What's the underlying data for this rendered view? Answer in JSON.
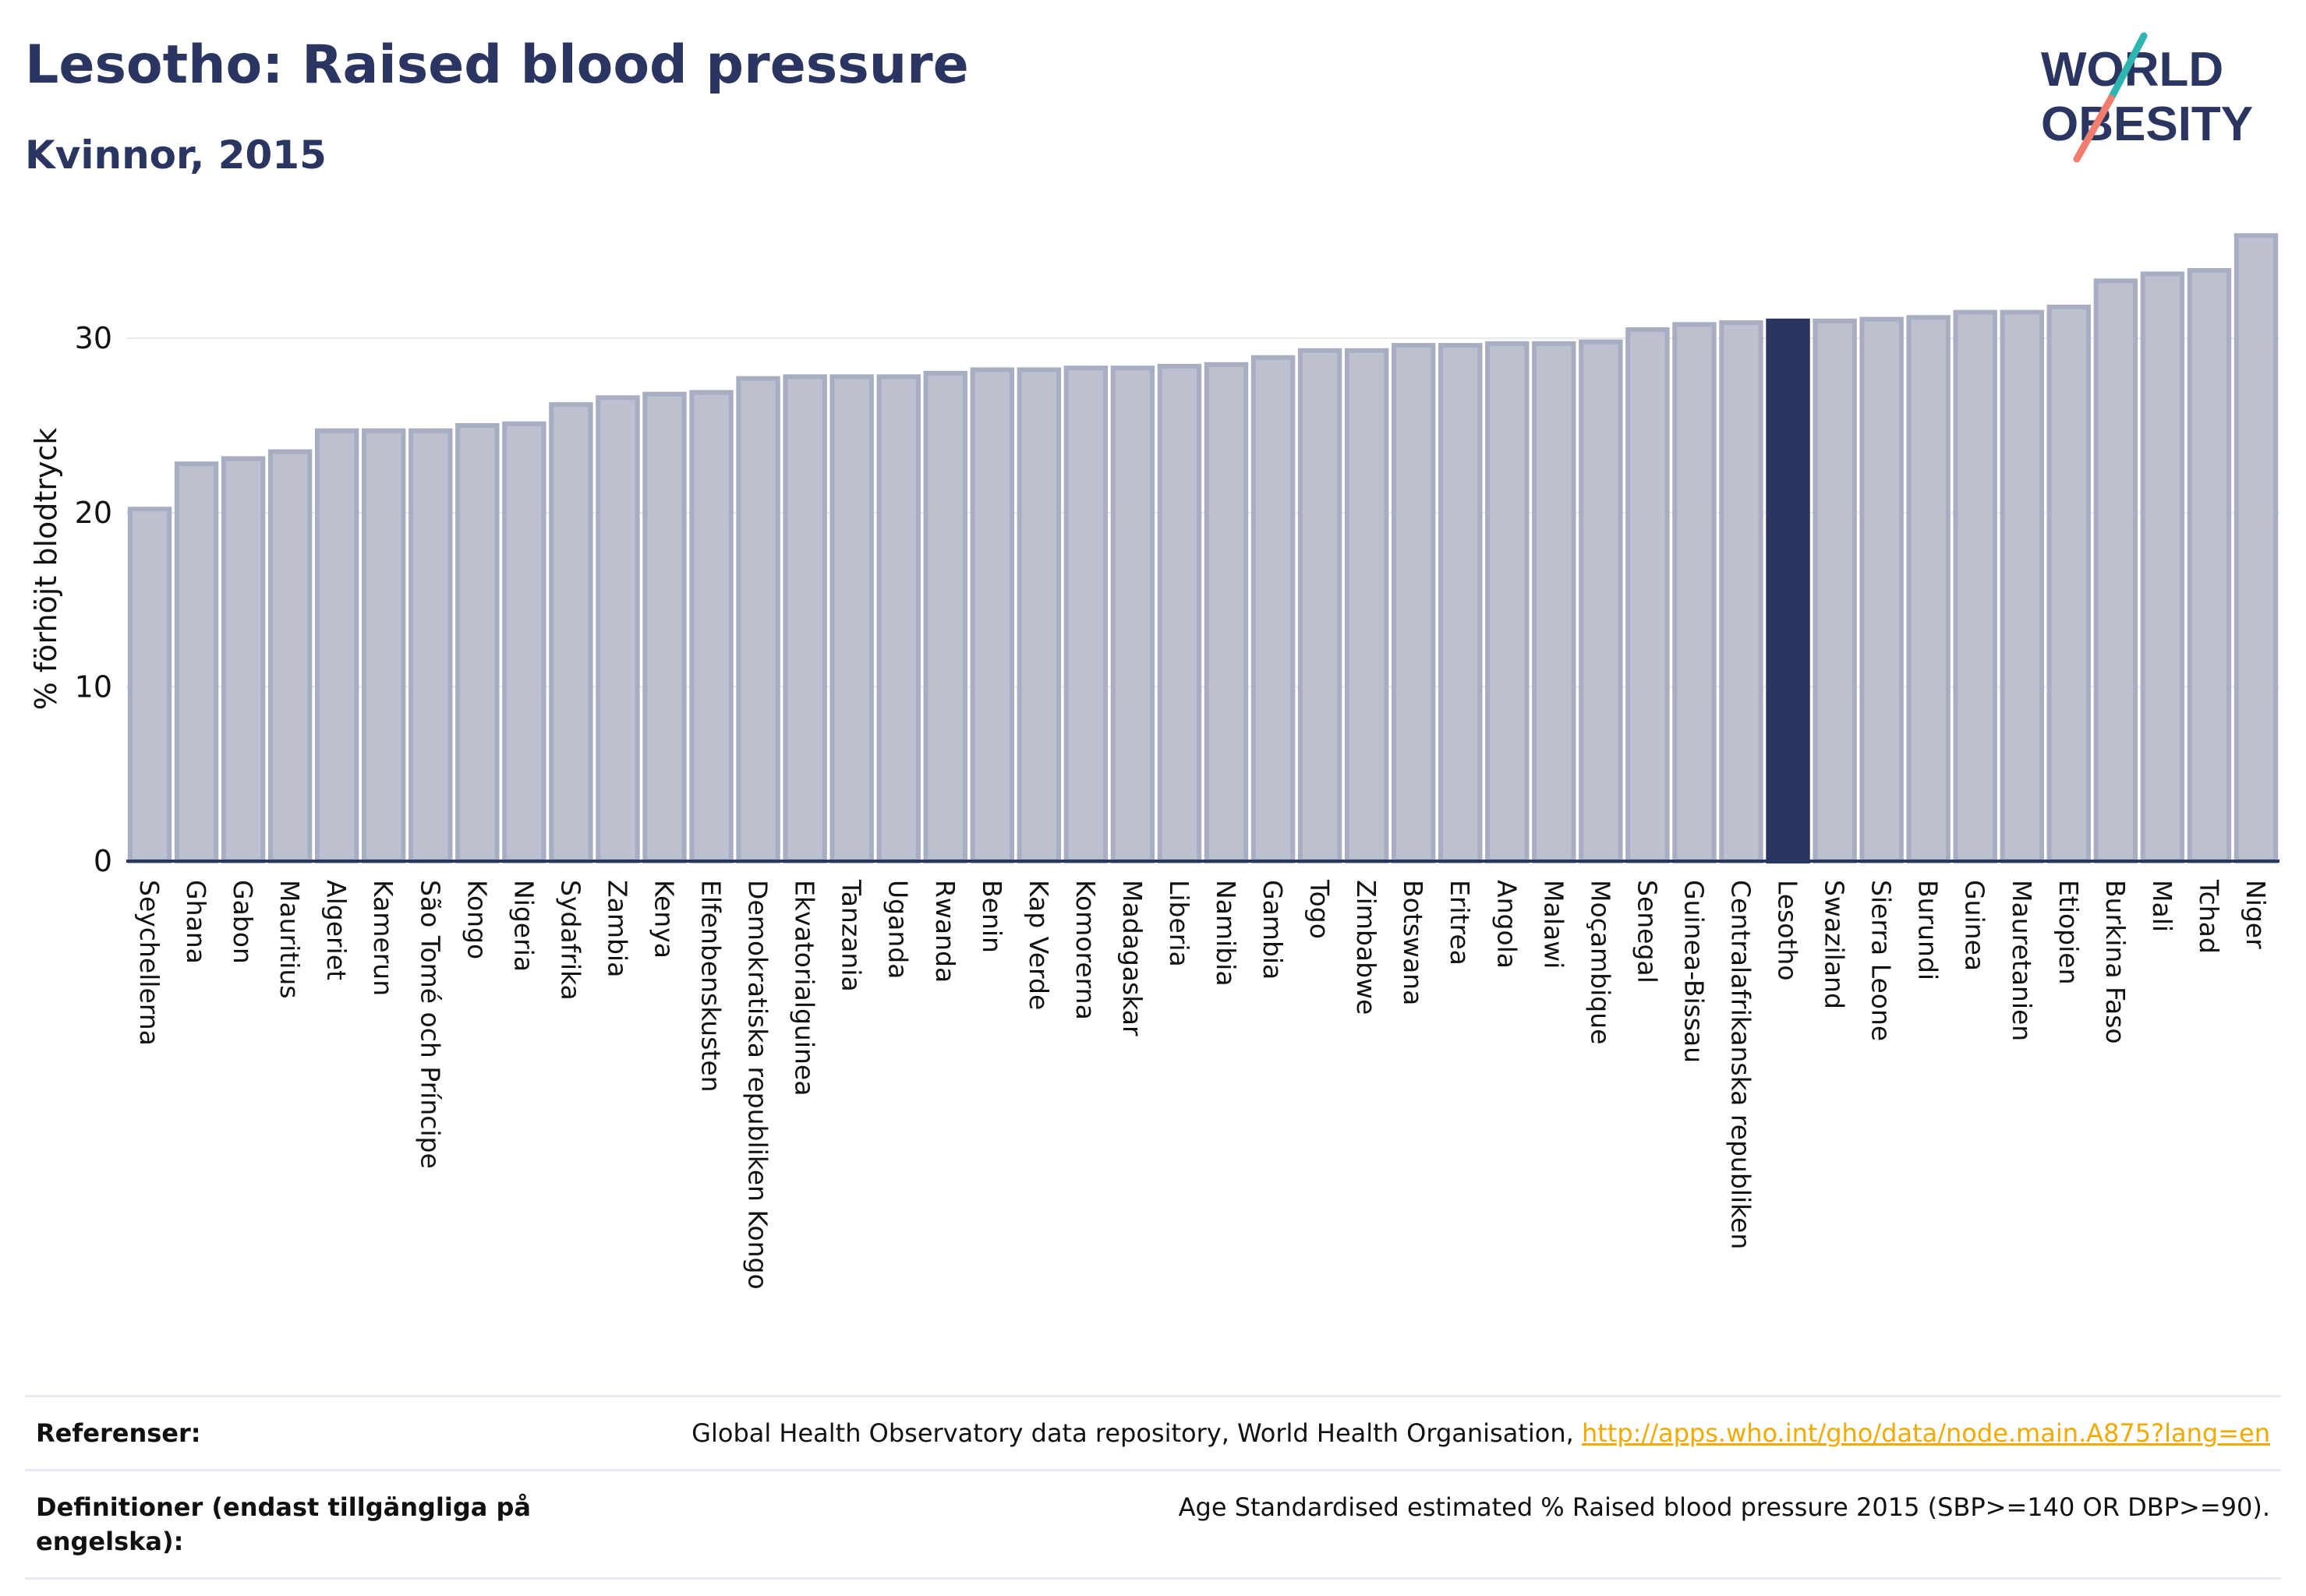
{
  "header": {
    "title": "Lesotho: Raised blood pressure",
    "subtitle": "Kvinnor, 2015",
    "logo_line1": "WORLD",
    "logo_line2": "OBESITY"
  },
  "colors": {
    "primary": "#2a3561",
    "bar_fill": "#bcc0cf",
    "bar_stroke": "#a8adc2",
    "highlight": "#2a3561",
    "link": "#f2a900",
    "logo_teal": "#2fb5b0",
    "logo_coral": "#f07e6e"
  },
  "chart_data": {
    "type": "bar",
    "ylabel": "% förhöjt blodtryck",
    "ylim": [
      0,
      36
    ],
    "yticks": [
      0,
      10,
      20,
      30
    ],
    "grid": true,
    "highlight": "Lesotho",
    "categories": [
      "Seychellerna",
      "Ghana",
      "Gabon",
      "Mauritius",
      "Algeriet",
      "Kamerun",
      "São Tomé och Príncipe",
      "Kongo",
      "Nigeria",
      "Sydafrika",
      "Zambia",
      "Kenya",
      "Elfenbenskusten",
      "Demokratiska republiken Kongo",
      "Ekvatorialguinea",
      "Tanzania",
      "Uganda",
      "Rwanda",
      "Benin",
      "Kap Verde",
      "Komorerna",
      "Madagaskar",
      "Liberia",
      "Namibia",
      "Gambia",
      "Togo",
      "Zimbabwe",
      "Botswana",
      "Eritrea",
      "Angola",
      "Malawi",
      "Moçambique",
      "Senegal",
      "Guinea-Bissau",
      "Centralafrikanska republiken",
      "Lesotho",
      "Swaziland",
      "Sierra Leone",
      "Burundi",
      "Guinea",
      "Mauretanien",
      "Etiopien",
      "Burkina Faso",
      "Mali",
      "Tchad",
      "Niger"
    ],
    "values": [
      20.2,
      22.8,
      23.1,
      23.5,
      24.7,
      24.7,
      24.7,
      25.0,
      25.1,
      26.2,
      26.6,
      26.8,
      26.9,
      27.7,
      27.8,
      27.8,
      27.8,
      28.0,
      28.2,
      28.2,
      28.3,
      28.3,
      28.4,
      28.5,
      28.9,
      29.3,
      29.3,
      29.6,
      29.6,
      29.7,
      29.7,
      29.8,
      30.5,
      30.8,
      30.9,
      31.0,
      31.0,
      31.1,
      31.2,
      31.5,
      31.5,
      31.8,
      33.3,
      33.7,
      33.9,
      35.9
    ]
  },
  "references": {
    "ref_label": "Referenser:",
    "ref_text": "Global Health Observatory data repository, World Health Organisation, ",
    "ref_link": "http://apps.who.int/gho/data/node.main.A875?lang=en",
    "def_label": "Definitioner (endast tillgängliga på engelska):",
    "def_text": "Age Standardised estimated % Raised blood pressure 2015 (SBP>=140 OR DBP>=90)."
  }
}
